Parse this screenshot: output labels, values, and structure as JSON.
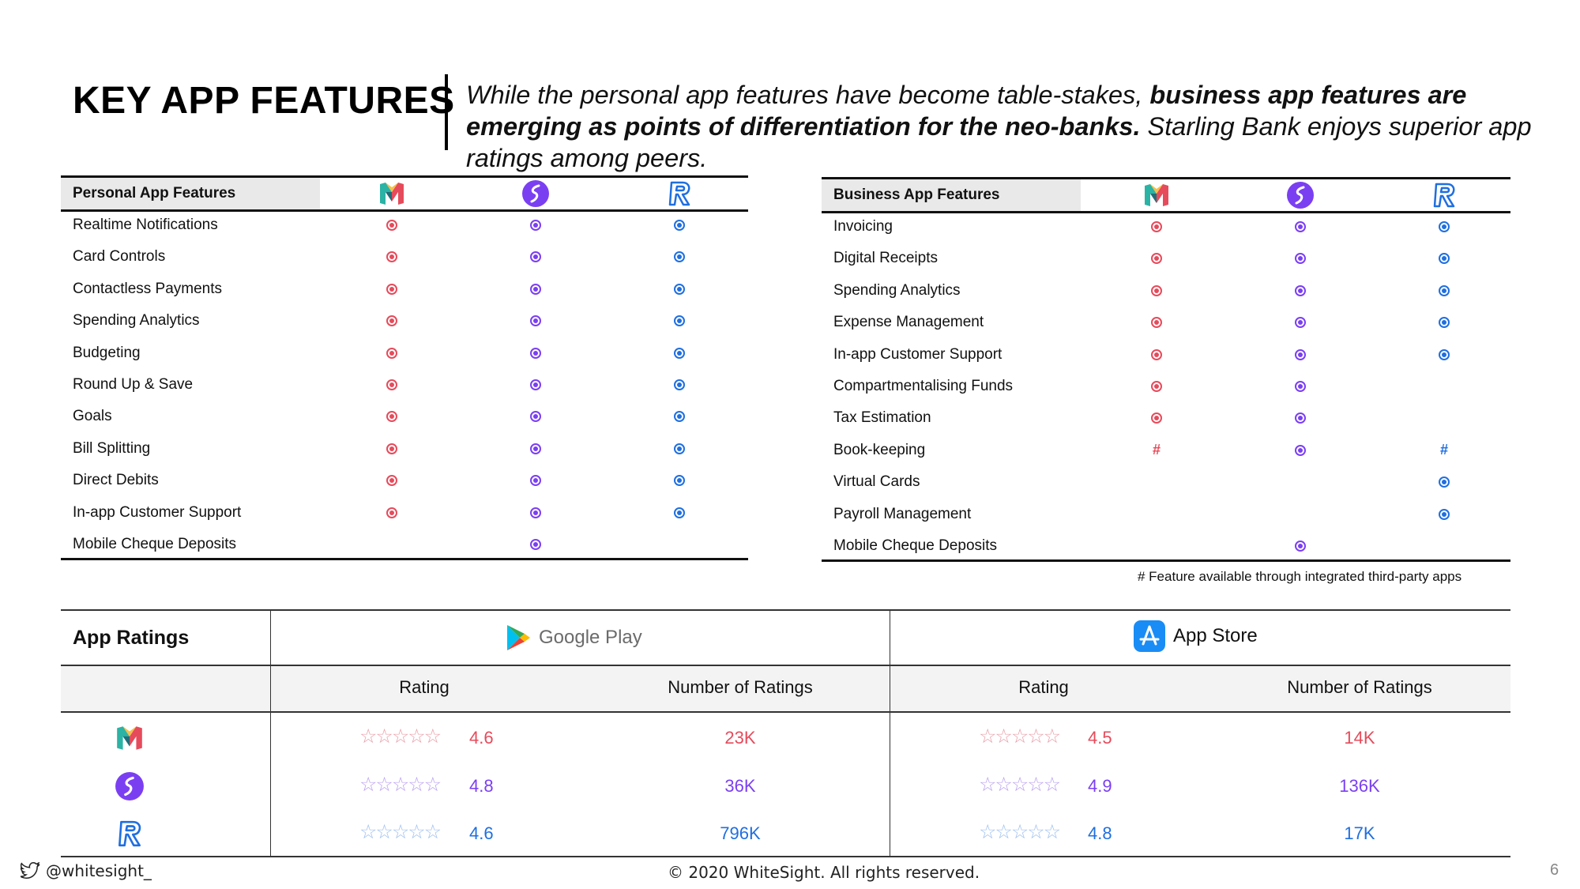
{
  "header": {
    "title": "KEY APP FEATURES",
    "subtitle_part1": "While the personal app features have become table-stakes, ",
    "subtitle_bold": "business app features are emerging as points of differentiation for the neo-banks.",
    "subtitle_part2": " Starling Bank enjoys superior app ratings among peers."
  },
  "brands": [
    {
      "name": "monzo-logo",
      "color": "#e64b5b"
    },
    {
      "name": "starling-logo",
      "color": "#7b3ff2"
    },
    {
      "name": "revolut-logo",
      "color": "#1f6fe0"
    }
  ],
  "personal_features": {
    "header": "Personal App Features",
    "rows": [
      {
        "label": "Realtime Notifications",
        "marks": [
          "dot",
          "dot",
          "dot"
        ]
      },
      {
        "label": "Card Controls",
        "marks": [
          "dot",
          "dot",
          "dot"
        ]
      },
      {
        "label": "Contactless Payments",
        "marks": [
          "dot",
          "dot",
          "dot"
        ]
      },
      {
        "label": "Spending Analytics",
        "marks": [
          "dot",
          "dot",
          "dot"
        ]
      },
      {
        "label": "Budgeting",
        "marks": [
          "dot",
          "dot",
          "dot"
        ]
      },
      {
        "label": "Round Up & Save",
        "marks": [
          "dot",
          "dot",
          "dot"
        ]
      },
      {
        "label": "Goals",
        "marks": [
          "dot",
          "dot",
          "dot"
        ]
      },
      {
        "label": "Bill Splitting",
        "marks": [
          "dot",
          "dot",
          "dot"
        ]
      },
      {
        "label": "Direct Debits",
        "marks": [
          "dot",
          "dot",
          "dot"
        ]
      },
      {
        "label": "In-app Customer Support",
        "marks": [
          "dot",
          "dot",
          "dot"
        ]
      },
      {
        "label": "Mobile Cheque Deposits",
        "marks": [
          "",
          "dot",
          ""
        ]
      }
    ]
  },
  "business_features": {
    "header": "Business App Features",
    "rows": [
      {
        "label": "Invoicing",
        "marks": [
          "dot",
          "dot",
          "dot"
        ]
      },
      {
        "label": "Digital Receipts",
        "marks": [
          "dot",
          "dot",
          "dot"
        ]
      },
      {
        "label": "Spending Analytics",
        "marks": [
          "dot",
          "dot",
          "dot"
        ]
      },
      {
        "label": "Expense Management",
        "marks": [
          "dot",
          "dot",
          "dot"
        ]
      },
      {
        "label": "In-app Customer Support",
        "marks": [
          "dot",
          "dot",
          "dot"
        ]
      },
      {
        "label": "Compartmentalising Funds",
        "marks": [
          "dot",
          "dot",
          ""
        ]
      },
      {
        "label": "Tax Estimation",
        "marks": [
          "dot",
          "dot",
          ""
        ]
      },
      {
        "label": "Book-keeping",
        "marks": [
          "#",
          "dot",
          "#"
        ]
      },
      {
        "label": "Virtual Cards",
        "marks": [
          "",
          "",
          "dot"
        ]
      },
      {
        "label": "Payroll Management",
        "marks": [
          "",
          "",
          "dot"
        ]
      },
      {
        "label": "Mobile Cheque Deposits",
        "marks": [
          "",
          "dot",
          ""
        ]
      }
    ],
    "footnote": "# Feature available through integrated third-party apps"
  },
  "ratings": {
    "title": "App Ratings",
    "google_play_label": "Google Play",
    "app_store_label": "App Store",
    "col_rating": "Rating",
    "col_count": "Number of Ratings",
    "rows": [
      {
        "gp_rating": "4.6",
        "gp_count": "23K",
        "as_rating": "4.5",
        "as_count": "14K",
        "gp_stars": 4.6,
        "as_stars": 4.5
      },
      {
        "gp_rating": "4.8",
        "gp_count": "36K",
        "as_rating": "4.9",
        "as_count": "136K",
        "gp_stars": 4.8,
        "as_stars": 4.9
      },
      {
        "gp_rating": "4.6",
        "gp_count": "796K",
        "as_rating": "4.8",
        "as_count": "17K",
        "gp_stars": 4.6,
        "as_stars": 4.8
      }
    ]
  },
  "footer": {
    "twitter_handle": "@whitesight_",
    "copyright": "© 2020 WhiteSight. All rights reserved.",
    "page_number": "6"
  }
}
